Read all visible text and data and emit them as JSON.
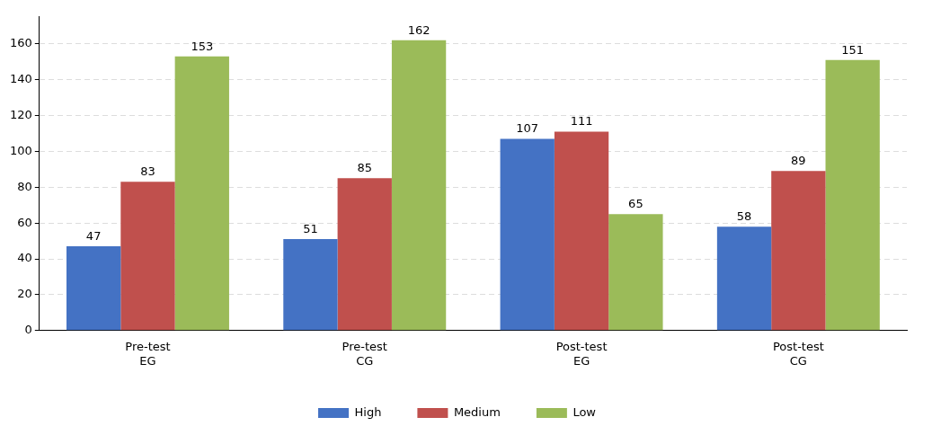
{
  "chart_data": {
    "type": "bar",
    "categories": [
      "Pre-test\nEG",
      "Pre-test\nCG",
      "Post-test\nEG",
      "Post-test\nCG"
    ],
    "series": [
      {
        "name": "High",
        "color": "#4472c4",
        "values": [
          47,
          51,
          107,
          58
        ]
      },
      {
        "name": "Medium",
        "color": "#c0504d",
        "values": [
          83,
          85,
          111,
          89
        ]
      },
      {
        "name": "Low",
        "color": "#9bbb59",
        "values": [
          153,
          162,
          65,
          151
        ]
      }
    ],
    "ylim": [
      0,
      175
    ],
    "yticks": [
      0,
      20,
      40,
      60,
      80,
      100,
      120,
      140,
      160
    ],
    "grid": "y",
    "legend": "bottom",
    "data_labels": true
  }
}
